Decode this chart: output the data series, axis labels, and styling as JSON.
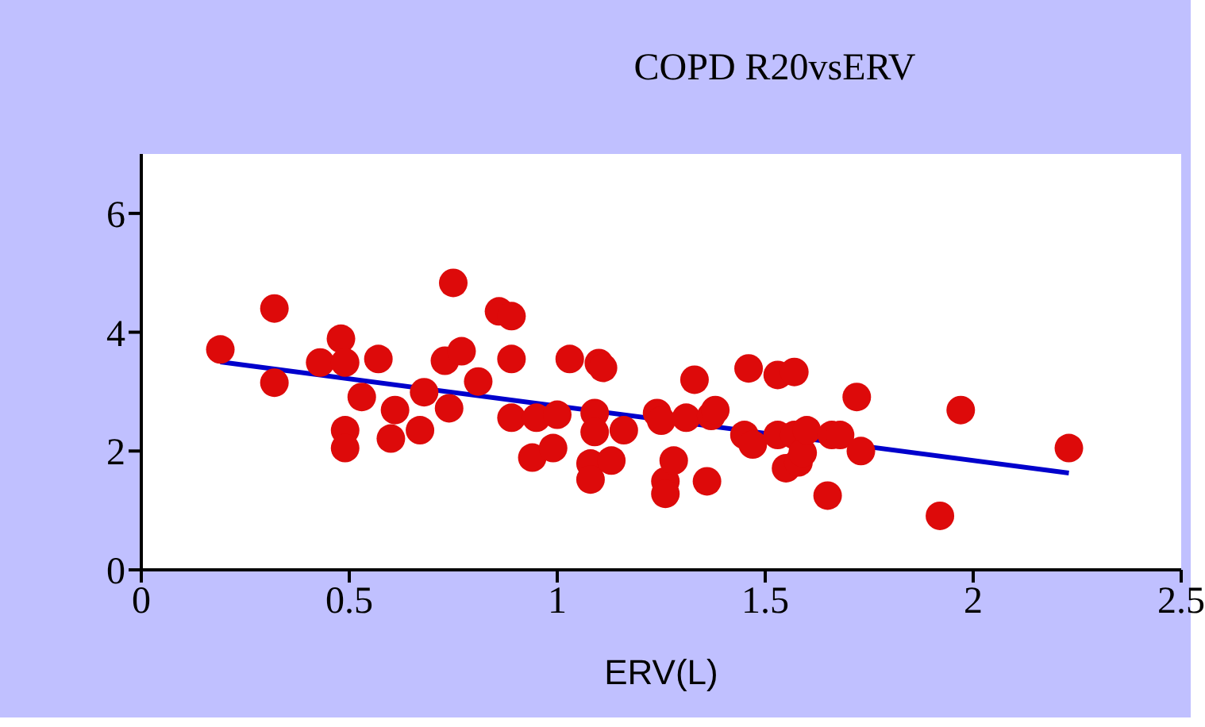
{
  "chart_data": {
    "type": "scatter",
    "title": "COPD R20vsERV",
    "xlabel": "ERV(L)",
    "xlim": [
      0,
      2.5
    ],
    "xticks": [
      0,
      0.5,
      1,
      1.5,
      2,
      2.5
    ],
    "ylim": [
      0,
      7
    ],
    "yticks": [
      0,
      2,
      4,
      6
    ],
    "grid": false,
    "series": [
      {
        "color": "#dd0a0a",
        "marker": "circle",
        "x": [
          0.19,
          0.32,
          0.32,
          0.43,
          0.48,
          0.49,
          0.49,
          0.49,
          0.53,
          0.57,
          0.6,
          0.61,
          0.67,
          0.68,
          0.73,
          0.74,
          0.75,
          0.77,
          0.81,
          0.86,
          0.89,
          0.89,
          0.89,
          0.94,
          0.95,
          0.99,
          1.0,
          1.03,
          1.1,
          1.11,
          1.09,
          1.09,
          1.08,
          1.08,
          1.13,
          1.16,
          1.24,
          1.25,
          1.26,
          1.26,
          1.28,
          1.31,
          1.33,
          1.36,
          1.37,
          1.38,
          1.45,
          1.46,
          1.47,
          1.53,
          1.53,
          1.55,
          1.57,
          1.57,
          1.58,
          1.59,
          1.6,
          1.65,
          1.66,
          1.68,
          1.72,
          1.73,
          1.92,
          1.97,
          2.23
        ],
        "values": [
          3.71,
          4.4,
          3.15,
          3.49,
          3.89,
          3.49,
          2.35,
          2.05,
          2.91,
          3.55,
          2.21,
          2.69,
          2.35,
          2.99,
          3.52,
          2.72,
          4.83,
          3.68,
          3.17,
          4.35,
          4.27,
          3.55,
          2.56,
          1.89,
          2.56,
          2.05,
          2.61,
          3.55,
          3.48,
          3.4,
          2.64,
          2.32,
          1.79,
          1.52,
          1.84,
          2.35,
          2.64,
          2.51,
          1.49,
          1.28,
          1.84,
          2.56,
          3.2,
          1.49,
          2.59,
          2.69,
          2.27,
          3.39,
          2.11,
          3.28,
          2.27,
          1.71,
          2.27,
          3.33,
          1.81,
          1.97,
          2.35,
          1.25,
          2.27,
          2.27,
          2.91,
          2.0,
          0.91,
          2.69,
          2.05
        ]
      },
      {
        "type": "line",
        "color": "#0000cc",
        "line_style": "solid",
        "x": [
          0.19,
          2.23
        ],
        "values": [
          3.5,
          1.63
        ]
      }
    ]
  }
}
